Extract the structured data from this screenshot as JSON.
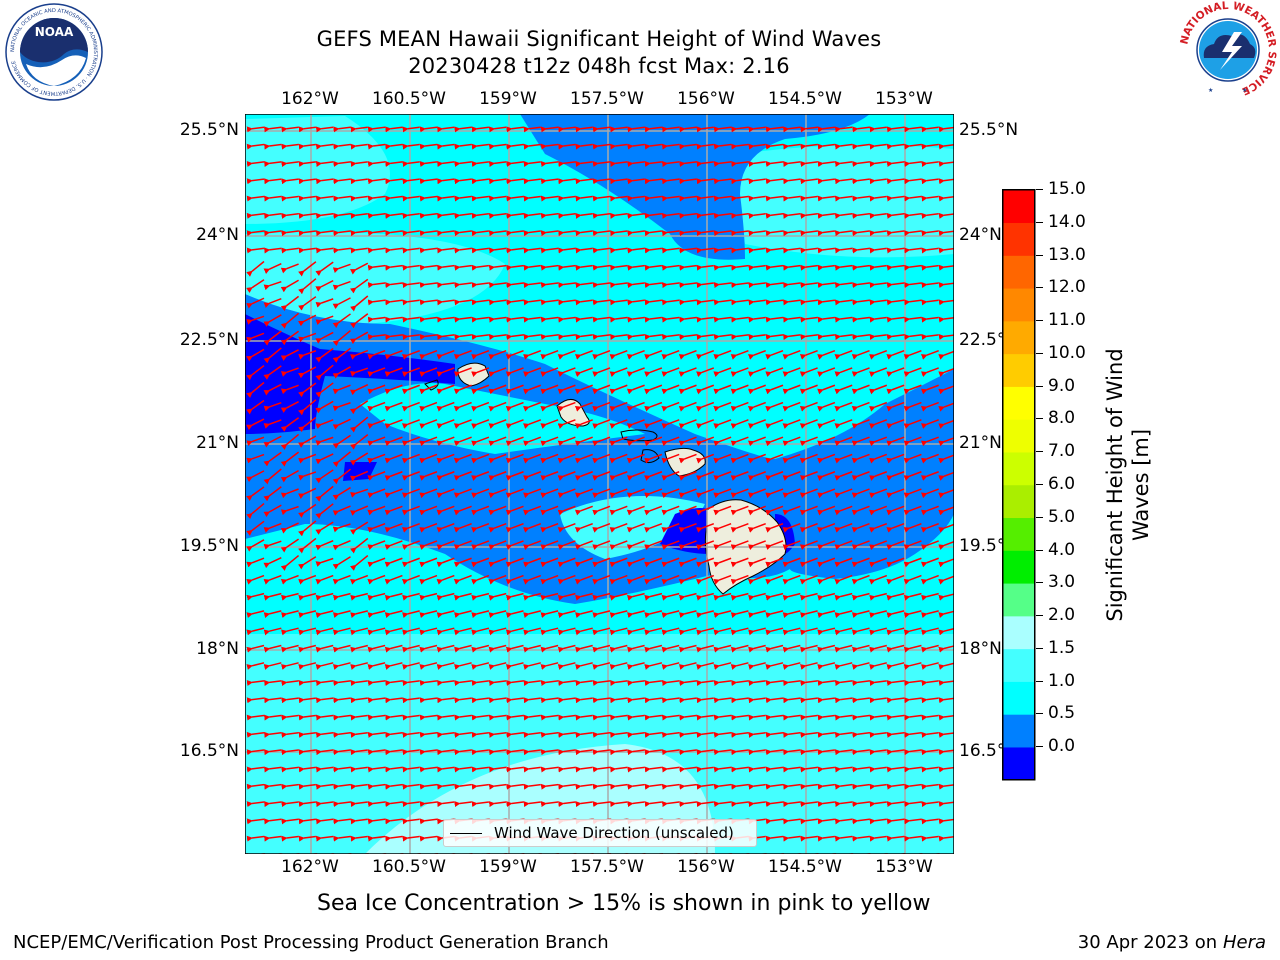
{
  "title": {
    "line1": "GEFS MEAN Hawaii Significant Height of Wind Waves",
    "line2": "20230428 t12z 048h fcst   Max: 2.16"
  },
  "map": {
    "lon_ticks": [
      "162°W",
      "160.5°W",
      "159°W",
      "157.5°W",
      "156°W",
      "154.5°W",
      "153°W"
    ],
    "lat_ticks": [
      "25.5°N",
      "24°N",
      "22.5°N",
      "21°N",
      "19.5°N",
      "18°N",
      "16.5°N"
    ],
    "lon_range": [
      -163,
      -152.3
    ],
    "lat_range": [
      15,
      25.8
    ],
    "wind_direction": "east-northeast to west-southwest",
    "colors": {
      "ocean_background": "#00ffff",
      "land": "#eeeedd",
      "arrows": "#ff0000",
      "grid": "#aaaaaa"
    }
  },
  "legend": {
    "label": "Wind Wave Direction (unscaled)"
  },
  "colorbar": {
    "label": "Significant Height of Wind Waves [m]",
    "label_line1": "Significant Height of Wind",
    "label_line2": "Waves [m]",
    "ticks": [
      "15.0",
      "14.0",
      "13.0",
      "12.0",
      "11.0",
      "10.0",
      "9.0",
      "8.0",
      "7.0",
      "6.0",
      "5.0",
      "4.0",
      "3.0",
      "2.0",
      "1.5",
      "1.0",
      "0.5",
      "0.0"
    ],
    "colors": [
      "#0000ff",
      "#0080ff",
      "#00ffff",
      "#44ffff",
      "#aaffff",
      "#55ff88",
      "#00ee00",
      "#55ee00",
      "#aaee00",
      "#ccff00",
      "#eeff00",
      "#ffff00",
      "#ffcc00",
      "#ffaa00",
      "#ff8800",
      "#ff6600",
      "#ff3300",
      "#ff0000"
    ]
  },
  "caption": "Sea Ice Concentration > 15% is shown in pink to yellow",
  "footer": {
    "left": "NCEP/EMC/Verification Post Processing Product Generation Branch",
    "right_prefix": "30 Apr 2023 on ",
    "right_host": "Hera"
  },
  "logos": {
    "noaa": {
      "text": "NOAA",
      "ring": "NATIONAL OCEANIC AND ATMOSPHERIC ADMINISTRATION · U.S. DEPARTMENT OF COMMERCE"
    },
    "nws": {
      "ring": "NATIONAL WEATHER SERVICE"
    }
  }
}
